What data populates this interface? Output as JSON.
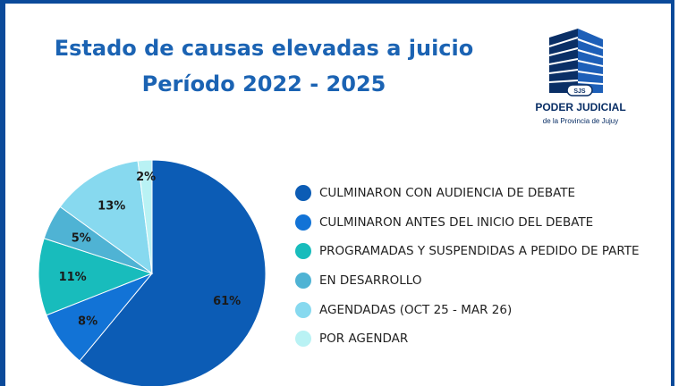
{
  "header": {
    "title_line1": "Estado de causas elevadas a juicio",
    "title_line2": "Período 2022 - 2025"
  },
  "logo": {
    "name": "PODER JUDICIAL",
    "subtitle": "de la Provincia de Jujuy",
    "badge": "SJS"
  },
  "colors": {
    "title": "#1b63b3",
    "border": "#0b4a9a",
    "logo_text": "#0a2f66"
  },
  "chart_data": {
    "type": "pie",
    "title": "Estado de causas elevadas a juicio Período 2022 - 2025",
    "legend_position": "right",
    "slices": [
      {
        "label": "CULMINARON CON AUDIENCIA DE DEBATE",
        "value": 61,
        "display": "61%",
        "color": "#0c5cb5"
      },
      {
        "label": "CULMINARON ANTES DEL INICIO DEL DEBATE",
        "value": 8,
        "display": "8%",
        "color": "#1273d6"
      },
      {
        "label": "PROGRAMADAS Y SUSPENDIDAS A PEDIDO DE PARTE",
        "value": 11,
        "display": "11%",
        "color": "#18bcbc"
      },
      {
        "label": "EN DESARROLLO",
        "value": 5,
        "display": "5%",
        "color": "#4fb3d4"
      },
      {
        "label": "AGENDADAS (OCT 25 - MAR 26)",
        "value": 13,
        "display": "13%",
        "color": "#87d9ef"
      },
      {
        "label": "POR AGENDAR",
        "value": 2,
        "display": "2%",
        "color": "#b9f2f4"
      }
    ]
  }
}
